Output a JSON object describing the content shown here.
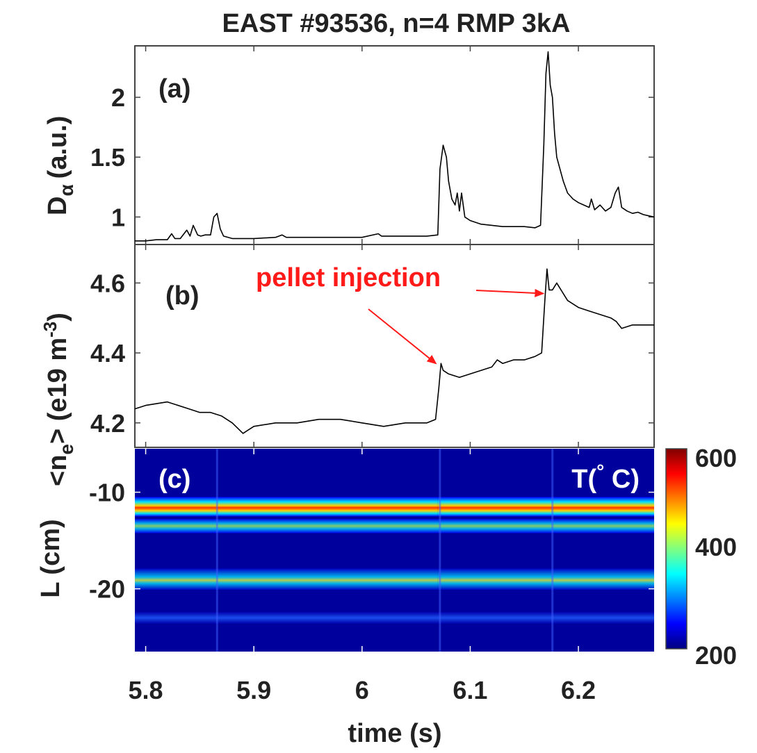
{
  "chart_data": {
    "title": "EAST #93536, n=4 RMP 3kA",
    "xlabel": "time (s)",
    "xlim": [
      5.79,
      6.27
    ],
    "x_ticks": [
      5.8,
      5.9,
      6.0,
      6.1,
      6.2
    ],
    "x_tick_labels": [
      "5.8",
      "5.9",
      "6",
      "6.1",
      "6.2"
    ],
    "panels": [
      {
        "id": "a",
        "type": "line",
        "panel_label": "(a)",
        "ylabel_main": "D",
        "ylabel_sub": "α",
        "ylabel_unit": "(a.u.)",
        "ylim": [
          0.77,
          2.43
        ],
        "y_ticks": [
          1.0,
          1.5,
          2.0
        ],
        "y_tick_labels": [
          "1",
          "1.5",
          "2"
        ],
        "series": [
          {
            "color": "#000000",
            "x": [
              5.79,
              5.8,
              5.81,
              5.82,
              5.824,
              5.827,
              5.832,
              5.838,
              5.841,
              5.844,
              5.848,
              5.851,
              5.855,
              5.86,
              5.863,
              5.866,
              5.869,
              5.872,
              5.88,
              5.9,
              5.92,
              5.926,
              5.93,
              5.95,
              5.98,
              6.0,
              6.015,
              6.018,
              6.03,
              6.06,
              6.07,
              6.072,
              6.075,
              6.078,
              6.08,
              6.083,
              6.086,
              6.088,
              6.09,
              6.092,
              6.095,
              6.1,
              6.11,
              6.12,
              6.13,
              6.14,
              6.15,
              6.16,
              6.165,
              6.168,
              6.17,
              6.172,
              6.174,
              6.176,
              6.178,
              6.18,
              6.183,
              6.186,
              6.19,
              6.195,
              6.2,
              6.205,
              6.21,
              6.212,
              6.215,
              6.22,
              6.225,
              6.23,
              6.234,
              6.237,
              6.24,
              6.245,
              6.25,
              6.255,
              6.26,
              6.265,
              6.27
            ],
            "y": [
              0.8,
              0.8,
              0.81,
              0.81,
              0.86,
              0.82,
              0.82,
              0.89,
              0.84,
              0.93,
              0.85,
              0.84,
              0.85,
              0.85,
              1.0,
              1.03,
              0.9,
              0.84,
              0.82,
              0.82,
              0.83,
              0.85,
              0.83,
              0.83,
              0.83,
              0.83,
              0.86,
              0.84,
              0.84,
              0.84,
              0.85,
              1.4,
              1.6,
              1.5,
              1.3,
              1.15,
              1.1,
              1.2,
              1.05,
              1.2,
              1.0,
              0.97,
              0.94,
              0.93,
              0.92,
              0.92,
              0.92,
              0.91,
              0.93,
              1.6,
              2.2,
              2.38,
              2.1,
              2.0,
              1.7,
              1.5,
              1.4,
              1.3,
              1.2,
              1.15,
              1.12,
              1.1,
              1.08,
              1.15,
              1.06,
              1.1,
              1.05,
              1.08,
              1.2,
              1.25,
              1.08,
              1.05,
              1.03,
              1.04,
              1.02,
              1.01,
              1.0
            ]
          }
        ]
      },
      {
        "id": "b",
        "type": "line",
        "panel_label": "(b)",
        "ylabel_main": "<n",
        "ylabel_sub": "e",
        "ylabel_unit": "> (e19 m",
        "ylabel_sup": "-3",
        "ylabel_close": ")",
        "ylim": [
          4.13,
          4.71
        ],
        "y_ticks": [
          4.2,
          4.4,
          4.6
        ],
        "y_tick_labels": [
          "4.2",
          "4.4",
          "4.6"
        ],
        "annotation": {
          "text": "pellet injection",
          "arrow_targets": [
            [
              6.072,
              4.37
            ],
            [
              6.17,
              4.57
            ]
          ]
        },
        "series": [
          {
            "color": "#000000",
            "x": [
              5.79,
              5.8,
              5.82,
              5.84,
              5.85,
              5.86,
              5.87,
              5.88,
              5.89,
              5.895,
              5.9,
              5.92,
              5.94,
              5.96,
              5.98,
              6.0,
              6.02,
              6.04,
              6.06,
              6.068,
              6.071,
              6.073,
              6.075,
              6.08,
              6.09,
              6.1,
              6.11,
              6.12,
              6.125,
              6.13,
              6.14,
              6.15,
              6.16,
              6.166,
              6.169,
              6.171,
              6.173,
              6.176,
              6.18,
              6.19,
              6.2,
              6.21,
              6.22,
              6.23,
              6.235,
              6.24,
              6.25,
              6.26,
              6.27
            ],
            "y": [
              4.24,
              4.25,
              4.26,
              4.24,
              4.23,
              4.23,
              4.22,
              4.2,
              4.17,
              4.18,
              4.19,
              4.2,
              4.2,
              4.21,
              4.21,
              4.2,
              4.19,
              4.2,
              4.2,
              4.21,
              4.3,
              4.37,
              4.35,
              4.34,
              4.33,
              4.34,
              4.35,
              4.36,
              4.38,
              4.37,
              4.38,
              4.38,
              4.39,
              4.4,
              4.55,
              4.64,
              4.58,
              4.58,
              4.6,
              4.55,
              4.53,
              4.52,
              4.51,
              4.5,
              4.49,
              4.47,
              4.48,
              4.48,
              4.48
            ]
          }
        ]
      },
      {
        "id": "c",
        "type": "heatmap",
        "panel_label": "(c)",
        "ylabel": "L (cm)",
        "ylim": [
          -26.5,
          -5.5
        ],
        "y_ticks": [
          -10,
          -20
        ],
        "y_tick_labels": [
          "-10",
          "-20"
        ],
        "z_label_prefix": "T(",
        "z_label_degree": "°",
        "z_label_suffix": " C)",
        "colormap": "jet",
        "colorbar": {
          "range": [
            200,
            600
          ],
          "tick_labels": [
            "600",
            "400",
            "200"
          ]
        },
        "bands": [
          {
            "L": -11.5,
            "segments": [
              {
                "x": [
                  5.79,
                  6.07
                ],
                "T": 560
              },
              {
                "x": [
                  6.07,
                  6.27
                ],
                "T": 430
              }
            ]
          },
          {
            "L": -13.5,
            "segments": [
              {
                "x": [
                  5.79,
                  6.27
                ],
                "T": 320
              }
            ]
          },
          {
            "L": -19.0,
            "segments": [
              {
                "x": [
                  5.79,
                  6.07
                ],
                "T": 390
              },
              {
                "x": [
                  6.07,
                  6.27
                ],
                "T": 330
              }
            ]
          },
          {
            "L": -23.0,
            "segments": [
              {
                "x": [
                  5.79,
                  6.27
                ],
                "T": 260
              }
            ]
          }
        ]
      }
    ]
  }
}
